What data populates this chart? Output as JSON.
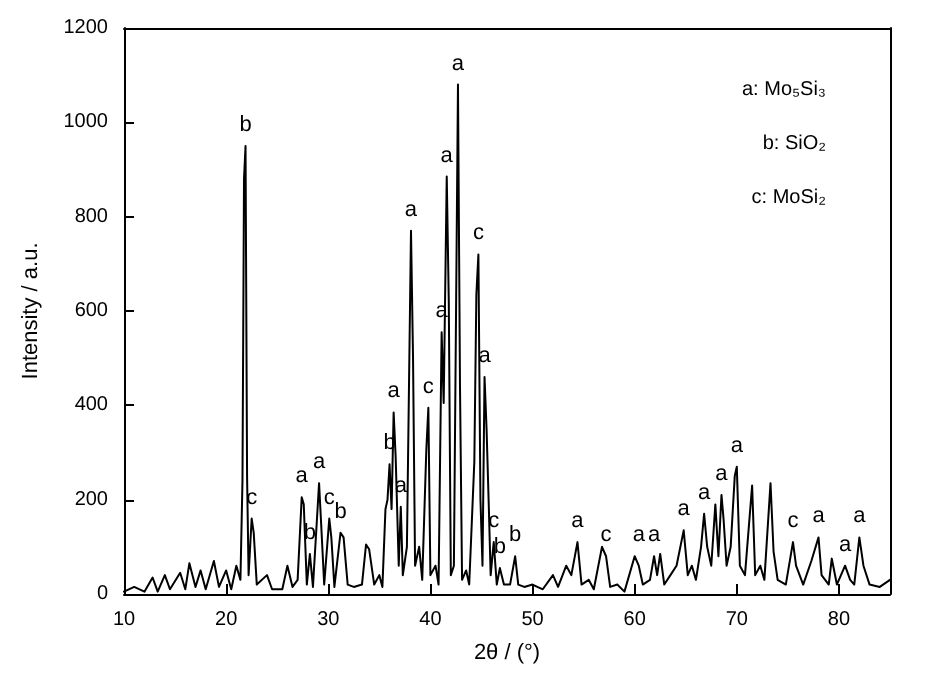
{
  "chart_data": {
    "type": "line",
    "xlabel": "2θ / (°)",
    "ylabel": "Intensity / a.u.",
    "xlim": [
      10,
      85
    ],
    "xticks": [
      10,
      20,
      30,
      40,
      50,
      60,
      70,
      80
    ],
    "ylim": [
      0,
      1200
    ],
    "yticks": [
      0,
      200,
      400,
      600,
      800,
      1000,
      1200
    ],
    "grid": false,
    "marker": "none",
    "line_style": "solid",
    "series": [
      {
        "color": "#000000",
        "x": [
          10,
          11,
          12,
          12.8,
          13.3,
          14,
          14.5,
          15.5,
          16,
          16.4,
          17,
          17.5,
          18,
          18.8,
          19.3,
          20,
          20.5,
          21,
          21.4,
          21.6,
          21.75,
          21.9,
          22.05,
          22.2,
          22.5,
          22.7,
          23,
          24,
          24.5,
          25.5,
          26,
          26.5,
          27,
          27.4,
          27.6,
          27.9,
          28.2,
          28.5,
          29.1,
          29.3,
          29.6,
          30.1,
          30.3,
          30.6,
          31.2,
          31.5,
          31.9,
          32.5,
          33.3,
          33.7,
          34,
          34.5,
          35,
          35.3,
          35.6,
          35.8,
          36,
          36.2,
          36.4,
          36.6,
          36.9,
          37.1,
          37.3,
          37.7,
          38.1,
          38.3,
          38.5,
          38.9,
          39.2,
          39.6,
          39.8,
          40,
          40.5,
          40.8,
          41.1,
          41.3,
          41.6,
          41.8,
          42,
          42.3,
          42.7,
          42.9,
          43.1,
          43.5,
          43.8,
          44.3,
          44.5,
          44.7,
          44.9,
          45.1,
          45.3,
          45.5,
          45.7,
          45.9,
          46.2,
          46.5,
          46.8,
          47.2,
          47.8,
          48.3,
          48.6,
          49.2,
          50,
          51,
          52,
          52.5,
          53.3,
          53.8,
          54.4,
          54.8,
          55.5,
          56,
          56.8,
          57.2,
          57.6,
          58.3,
          59,
          60,
          60.4,
          60.8,
          61.5,
          61.9,
          62.2,
          62.5,
          62.9,
          63.5,
          64.1,
          64.8,
          65.2,
          65.6,
          66,
          66.5,
          66.8,
          67.1,
          67.5,
          67.9,
          68.2,
          68.5,
          68.7,
          69,
          69.4,
          69.8,
          70,
          70.3,
          70.8,
          71.5,
          71.8,
          72.3,
          72.7,
          73.3,
          73.6,
          74,
          74.8,
          75.5,
          75.8,
          76.5,
          77.3,
          78,
          78.3,
          79,
          79.3,
          79.8,
          80.6,
          81.1,
          81.5,
          82,
          82.4,
          83,
          84,
          85
        ],
        "values": [
          5,
          15,
          5,
          35,
          5,
          40,
          10,
          45,
          10,
          65,
          15,
          50,
          10,
          70,
          15,
          50,
          10,
          60,
          30,
          240,
          880,
          950,
          250,
          40,
          160,
          130,
          20,
          40,
          10,
          10,
          60,
          15,
          30,
          205,
          190,
          20,
          85,
          15,
          235,
          150,
          20,
          160,
          120,
          15,
          130,
          120,
          20,
          15,
          20,
          105,
          95,
          20,
          40,
          15,
          180,
          200,
          275,
          180,
          385,
          290,
          60,
          185,
          40,
          100,
          770,
          500,
          60,
          100,
          30,
          305,
          395,
          40,
          60,
          20,
          555,
          405,
          885,
          620,
          40,
          60,
          1080,
          435,
          30,
          50,
          20,
          280,
          635,
          720,
          200,
          60,
          460,
          350,
          200,
          40,
          110,
          20,
          55,
          20,
          20,
          80,
          20,
          15,
          20,
          10,
          40,
          15,
          60,
          40,
          110,
          20,
          30,
          10,
          100,
          80,
          15,
          20,
          5,
          80,
          60,
          20,
          30,
          80,
          40,
          85,
          20,
          40,
          60,
          135,
          40,
          60,
          30,
          100,
          170,
          100,
          60,
          190,
          80,
          210,
          160,
          60,
          100,
          250,
          270,
          60,
          40,
          230,
          40,
          60,
          30,
          235,
          90,
          30,
          20,
          110,
          60,
          20,
          70,
          120,
          40,
          20,
          75,
          20,
          60,
          30,
          20,
          120,
          60,
          20,
          15,
          30
        ]
      }
    ],
    "annotations": [
      "a: Mo₅Si₃",
      "b: SiO₂",
      "c: MoSi₂",
      {
        "text": "b",
        "x": 21.9,
        "y": 950
      },
      {
        "text": "c",
        "x": 22.5,
        "y": 160
      },
      {
        "text": "a",
        "x": 27.4,
        "y": 205
      },
      {
        "text": "b",
        "x": 28.2,
        "y": 85
      },
      {
        "text": "a",
        "x": 29.1,
        "y": 235
      },
      {
        "text": "c",
        "x": 30.1,
        "y": 160
      },
      {
        "text": "b",
        "x": 31.2,
        "y": 130
      },
      {
        "text": "b",
        "x": 36,
        "y": 275
      },
      {
        "text": "a",
        "x": 36.4,
        "y": 385
      },
      {
        "text": "a",
        "x": 37.1,
        "y": 185
      },
      {
        "text": "a",
        "x": 38.1,
        "y": 770
      },
      {
        "text": "c",
        "x": 39.8,
        "y": 395
      },
      {
        "text": "a",
        "x": 41.1,
        "y": 555
      },
      {
        "text": "a",
        "x": 41.6,
        "y": 885
      },
      {
        "text": "a",
        "x": 42.7,
        "y": 1080
      },
      {
        "text": "c",
        "x": 44.7,
        "y": 720
      },
      {
        "text": "a",
        "x": 45.3,
        "y": 460
      },
      {
        "text": "c",
        "x": 46.2,
        "y": 110
      },
      {
        "text": "b",
        "x": 46.8,
        "y": 55
      },
      {
        "text": "b",
        "x": 48.3,
        "y": 80
      },
      {
        "text": "a",
        "x": 54.4,
        "y": 110
      },
      {
        "text": "c",
        "x": 57.2,
        "y": 80
      },
      {
        "text": "a",
        "x": 60.4,
        "y": 80
      },
      {
        "text": "a",
        "x": 61.9,
        "y": 80
      },
      {
        "text": "a",
        "x": 64.8,
        "y": 135
      },
      {
        "text": "a",
        "x": 66.8,
        "y": 170
      },
      {
        "text": "a",
        "x": 68.5,
        "y": 210
      },
      {
        "text": "a",
        "x": 70,
        "y": 270
      },
      {
        "text": "c",
        "x": 75.5,
        "y": 110
      },
      {
        "text": "a",
        "x": 78,
        "y": 120
      },
      {
        "text": "a",
        "x": 80.6,
        "y": 60
      },
      {
        "text": "a",
        "x": 82,
        "y": 120
      }
    ]
  }
}
